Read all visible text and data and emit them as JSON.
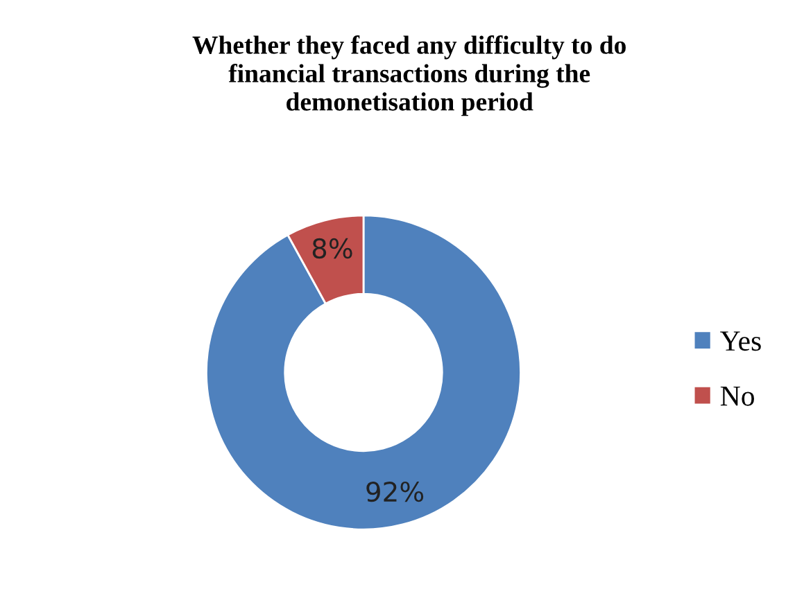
{
  "chart_data": {
    "type": "donut",
    "title": "Whether they faced any difficulty to do\nfinancial transactions during the\ndemonetisation period",
    "categories": [
      "Yes",
      "No"
    ],
    "values": [
      92,
      8
    ],
    "value_labels": [
      "92%",
      "8%"
    ],
    "colors": [
      "#4f81bd",
      "#c0504d"
    ],
    "legend": "right"
  }
}
